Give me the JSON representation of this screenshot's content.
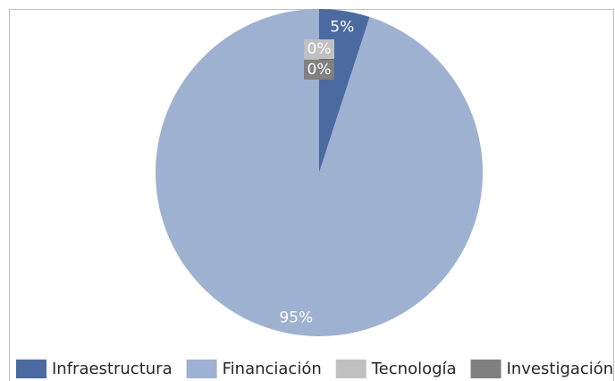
{
  "chart_data": {
    "type": "pie",
    "categories": [
      "Infraestructura",
      "Financiación",
      "Tecnología",
      "Investigación"
    ],
    "values": [
      5,
      95,
      0,
      0
    ],
    "value_labels": [
      "5%",
      "95%",
      "0%",
      "0%"
    ],
    "colors": [
      "#4a6aa0",
      "#9fb1d0",
      "#c0c0c0",
      "#808080"
    ],
    "legend": "bottom"
  }
}
